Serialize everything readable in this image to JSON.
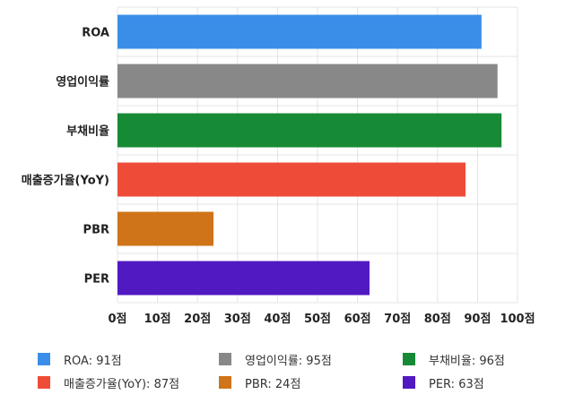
{
  "chart_data": {
    "type": "bar",
    "orientation": "horizontal",
    "title": "",
    "xlabel": "",
    "ylabel": "",
    "categories": [
      "ROA",
      "영업이익률",
      "부채비율",
      "매출증가율(YoY)",
      "PBR",
      "PER"
    ],
    "values": [
      91,
      95,
      96,
      87,
      24,
      63
    ],
    "colors": [
      "#3b8ee8",
      "#888888",
      "#168a35",
      "#ee4c38",
      "#cf7418",
      "#5119c2"
    ],
    "xlim": [
      0,
      100
    ],
    "x_ticks": [
      "0점",
      "10점",
      "20점",
      "30점",
      "40점",
      "50점",
      "60점",
      "70점",
      "80점",
      "90점",
      "100점"
    ],
    "grid": true,
    "legend_position": "bottom",
    "legend": [
      "ROA: 91점",
      "영업이익률: 95점",
      "부채비율: 96점",
      "매출증가율(YoY): 87점",
      "PBR: 24점",
      "PER: 63점"
    ]
  }
}
